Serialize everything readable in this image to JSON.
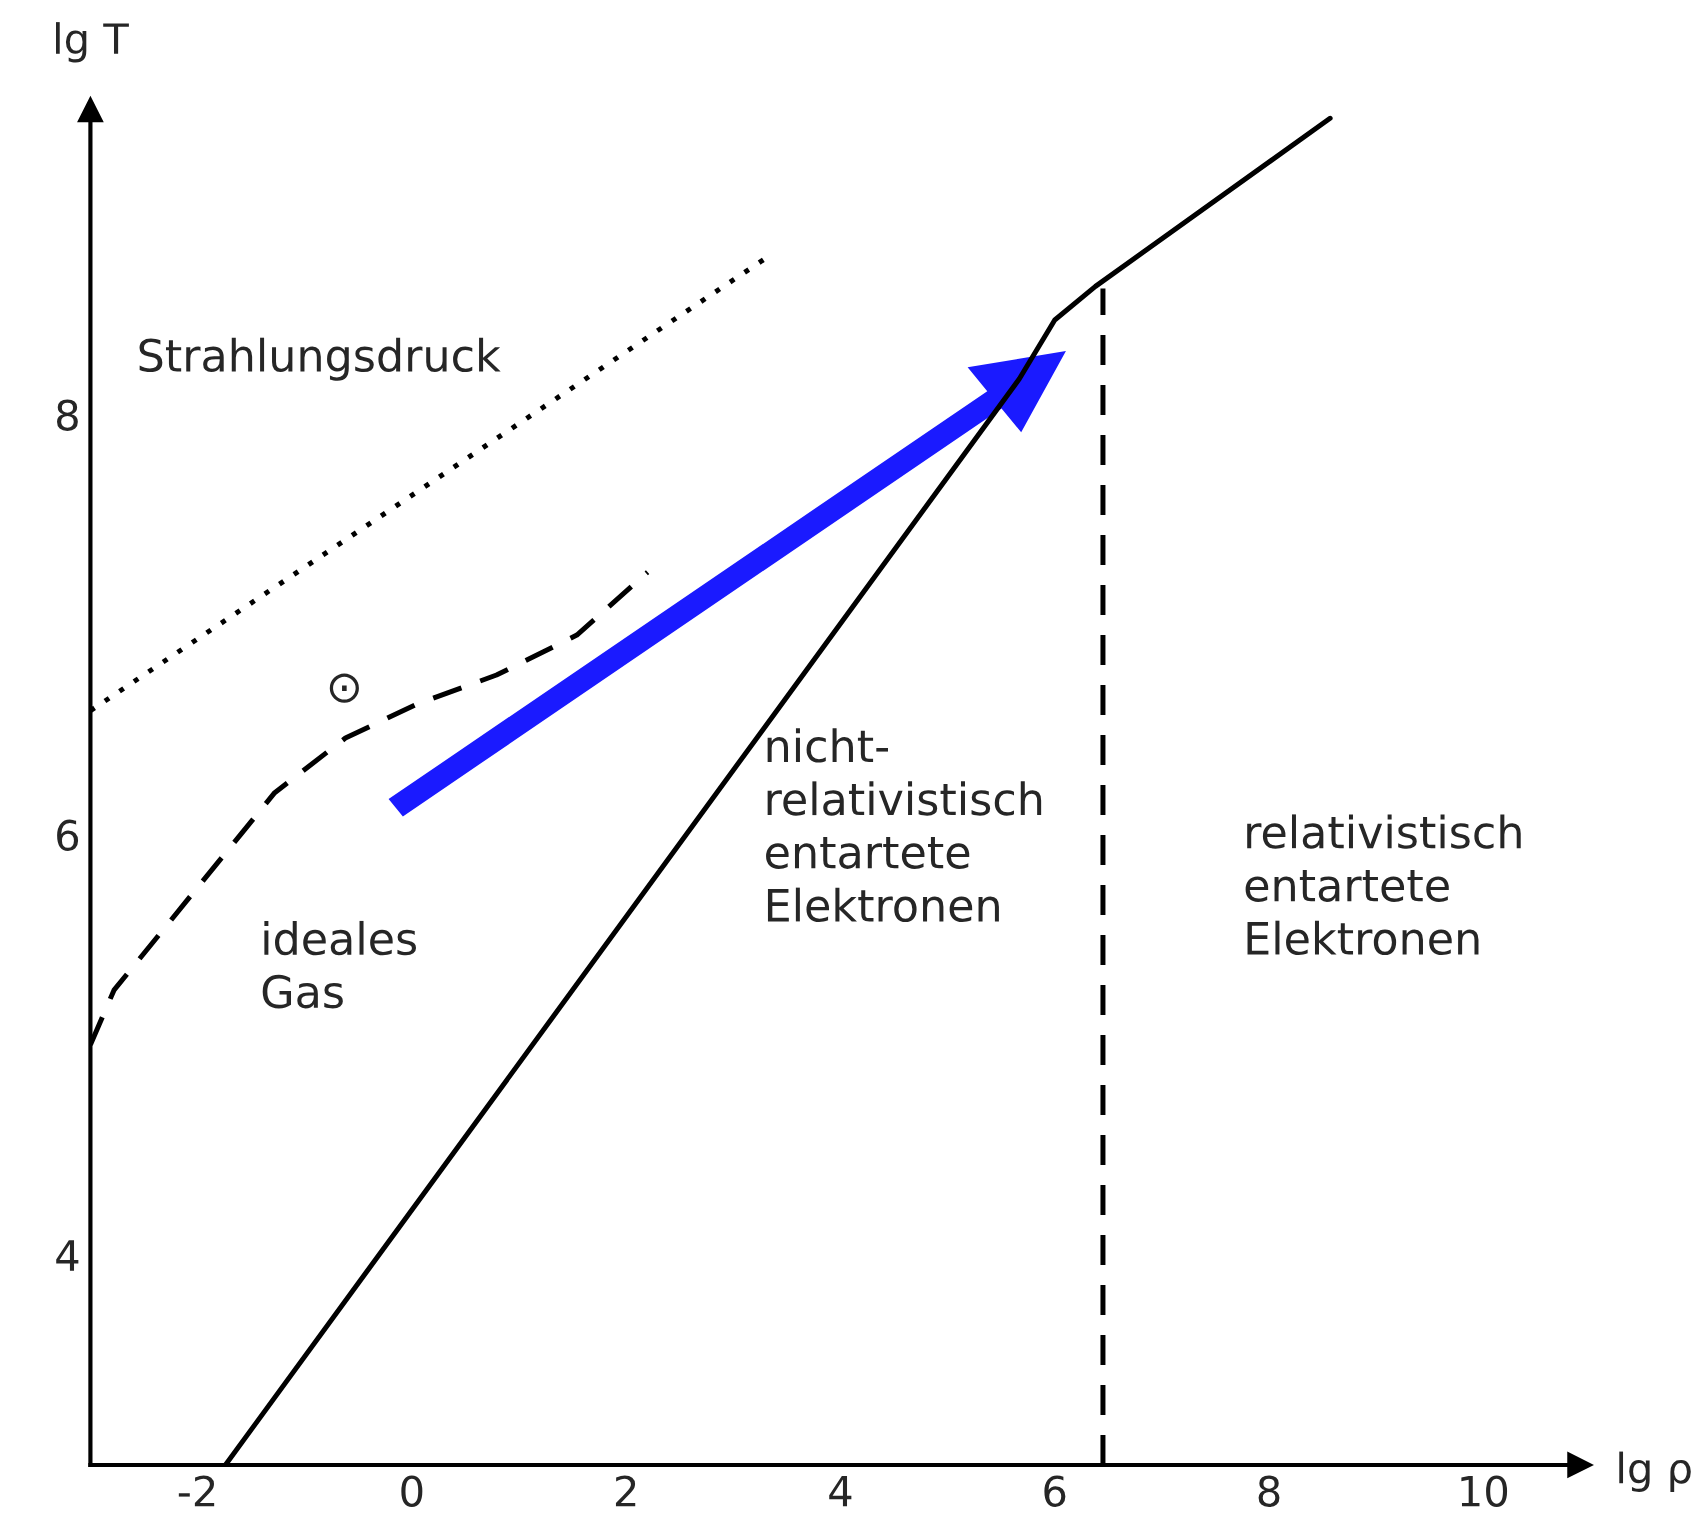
{
  "chart_data": {
    "type": "line",
    "xlabel": "lg ρ",
    "ylabel": "lg T",
    "xlim": [
      -3,
      10.9
    ],
    "ylim": [
      3,
      9.45
    ],
    "xticks": [
      -2,
      0,
      2,
      4,
      6,
      8,
      10
    ],
    "yticks": [
      4,
      6,
      8
    ],
    "grid": false,
    "legend": false,
    "marker": "none",
    "series": [
      {
        "color": "#000000",
        "line_style": "solid",
        "x": [
          -1.74,
          5.67,
          6.0,
          6.38,
          8.57
        ],
        "values": [
          3.0,
          8.17,
          8.45,
          8.61,
          9.41
        ]
      },
      {
        "color": "#000000",
        "line_style": "dotted",
        "x": [
          -3.0,
          3.32
        ],
        "values": [
          6.59,
          8.75
        ]
      },
      {
        "color": "#000000",
        "line_style": "dashed",
        "x": [
          -3.0,
          -2.78,
          -2.03,
          -1.28,
          -0.62,
          0.04,
          0.79,
          1.54,
          2.2
        ],
        "values": [
          5.0,
          5.26,
          5.73,
          6.2,
          6.46,
          6.62,
          6.76,
          6.95,
          7.25
        ]
      },
      {
        "color": "#000000",
        "line_style": "dashed",
        "x": [
          6.45,
          6.45
        ],
        "values": [
          3.0,
          8.6
        ]
      }
    ],
    "annotations": [
      "Strahlungsdruck",
      "⊙",
      "ideales\nGas",
      "nicht-\nrelativistisch\nentartete\nElektronen",
      "relativistisch\nentartete\nElektronen"
    ]
  }
}
